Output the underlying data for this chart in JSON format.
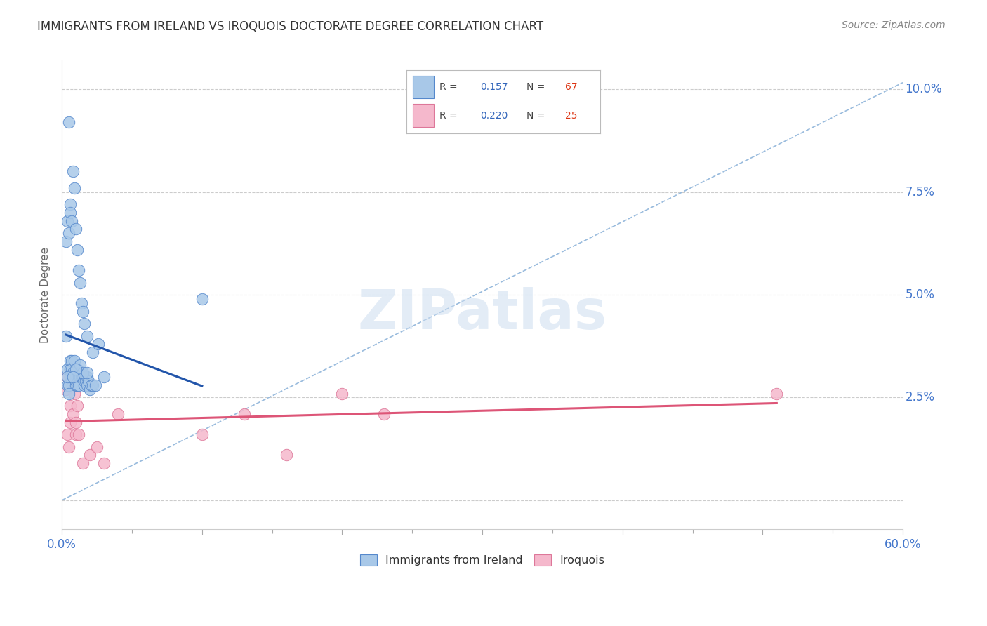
{
  "title": "IMMIGRANTS FROM IRELAND VS IROQUOIS DOCTORATE DEGREE CORRELATION CHART",
  "source": "Source: ZipAtlas.com",
  "ylabel": "Doctorate Degree",
  "xmin": 0.0,
  "xmax": 0.6,
  "ymin": -0.007,
  "ymax": 0.107,
  "ireland_color": "#a8c8e8",
  "iroquois_color": "#f5b8cc",
  "ireland_edge": "#5588cc",
  "iroquois_edge": "#dd7799",
  "trendline_ireland_color": "#2255aa",
  "trendline_iroquois_color": "#dd5577",
  "diagonal_color": "#99bbdd",
  "grid_color": "#cccccc",
  "r_color": "#3366bb",
  "n_color": "#dd3311",
  "title_color": "#333333",
  "source_color": "#888888",
  "axis_tick_color": "#4477cc",
  "ireland_x": [
    0.005,
    0.003,
    0.004,
    0.004,
    0.005,
    0.005,
    0.006,
    0.006,
    0.006,
    0.007,
    0.007,
    0.008,
    0.008,
    0.009,
    0.009,
    0.01,
    0.01,
    0.01,
    0.011,
    0.011,
    0.012,
    0.012,
    0.013,
    0.013,
    0.014,
    0.014,
    0.015,
    0.015,
    0.016,
    0.016,
    0.017,
    0.017,
    0.018,
    0.018,
    0.019,
    0.02,
    0.021,
    0.022,
    0.024,
    0.03,
    0.003,
    0.004,
    0.004,
    0.005,
    0.006,
    0.006,
    0.007,
    0.008,
    0.009,
    0.01,
    0.011,
    0.012,
    0.013,
    0.014,
    0.015,
    0.016,
    0.018,
    0.009,
    0.011,
    0.013,
    0.015,
    0.018,
    0.022,
    0.026,
    0.1,
    0.01,
    0.008
  ],
  "ireland_y": [
    0.092,
    0.04,
    0.032,
    0.028,
    0.028,
    0.026,
    0.034,
    0.032,
    0.03,
    0.034,
    0.032,
    0.03,
    0.031,
    0.03,
    0.03,
    0.03,
    0.028,
    0.029,
    0.031,
    0.028,
    0.03,
    0.028,
    0.031,
    0.03,
    0.03,
    0.031,
    0.03,
    0.03,
    0.028,
    0.029,
    0.03,
    0.029,
    0.03,
    0.028,
    0.029,
    0.027,
    0.028,
    0.028,
    0.028,
    0.03,
    0.063,
    0.03,
    0.068,
    0.065,
    0.072,
    0.07,
    0.068,
    0.08,
    0.076,
    0.066,
    0.061,
    0.056,
    0.053,
    0.048,
    0.046,
    0.043,
    0.04,
    0.034,
    0.032,
    0.033,
    0.031,
    0.031,
    0.036,
    0.038,
    0.049,
    0.032,
    0.03
  ],
  "iroquois_x": [
    0.003,
    0.004,
    0.004,
    0.005,
    0.006,
    0.006,
    0.008,
    0.009,
    0.01,
    0.01,
    0.011,
    0.012,
    0.013,
    0.015,
    0.017,
    0.02,
    0.025,
    0.03,
    0.04,
    0.1,
    0.13,
    0.16,
    0.2,
    0.23,
    0.51
  ],
  "iroquois_y": [
    0.027,
    0.03,
    0.016,
    0.013,
    0.023,
    0.019,
    0.021,
    0.026,
    0.016,
    0.019,
    0.023,
    0.016,
    0.031,
    0.009,
    0.029,
    0.011,
    0.013,
    0.009,
    0.021,
    0.016,
    0.021,
    0.011,
    0.026,
    0.021,
    0.026
  ],
  "x_ticks": [
    0.0,
    0.1,
    0.2,
    0.3,
    0.4,
    0.5,
    0.6
  ],
  "x_minor_ticks": [
    0.05,
    0.15,
    0.25,
    0.35,
    0.45,
    0.55
  ],
  "y_ticks": [
    0.0,
    0.025,
    0.05,
    0.075,
    0.1
  ],
  "y_right_labels": {
    "0.10": "10.0%",
    "0.075": "7.5%",
    "0.05": "5.0%",
    "0.025": "2.5%"
  }
}
